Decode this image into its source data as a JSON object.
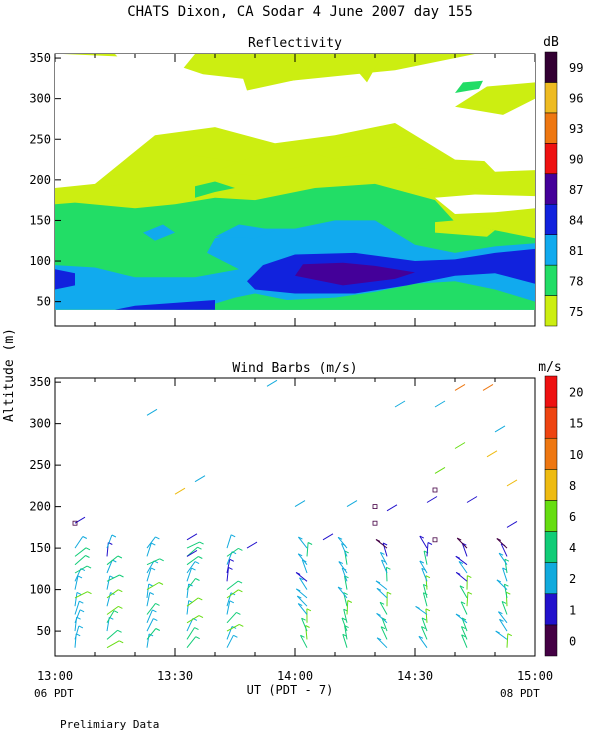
{
  "page": {
    "title": "CHATS Dixon, CA  Sodar   4 June 2007  day 155",
    "ylabel": "Altitude (m)",
    "xlabel": "UT  (PDT - 7)",
    "x_left_note": "06 PDT",
    "x_right_note": "08 PDT",
    "footer": "Prelimiary Data"
  },
  "chart_data": [
    {
      "type": "heatmap",
      "title": "Reflectivity",
      "colorbar_unit": "dB",
      "x_ticks": [
        "13:00",
        "13:30",
        "14:00",
        "14:30",
        "15:00"
      ],
      "x_range_minutes": [
        0,
        120
      ],
      "ylim": [
        20,
        355
      ],
      "y_ticks": [
        50,
        100,
        150,
        200,
        250,
        300,
        350
      ],
      "levels": [
        75,
        78,
        81,
        84,
        87,
        90,
        93,
        96,
        99
      ],
      "colors": [
        "#ccee11",
        "#22dd66",
        "#11aaee",
        "#1122dd",
        "#440099",
        "#ee1111",
        "#ee7711",
        "#eebb22",
        "#330033"
      ],
      "filled_region_y_range": [
        40,
        190
      ],
      "regions": [
        {
          "level": 75,
          "t_minutes": [
            0,
            120
          ],
          "alt_range": [
            40,
            350
          ]
        },
        {
          "level": 78,
          "t_minutes": [
            0,
            120
          ],
          "alt_range": [
            40,
            170
          ]
        },
        {
          "level": 81,
          "t_minutes": [
            0,
            120
          ],
          "alt_range": [
            40,
            150
          ]
        },
        {
          "level": 84,
          "t_minutes": [
            30,
            120
          ],
          "alt_range": [
            40,
            110
          ]
        },
        {
          "level": 87,
          "t_minutes": [
            60,
            90
          ],
          "alt_range": [
            70,
            95
          ]
        }
      ]
    },
    {
      "type": "scatter",
      "title": "Wind Barbs (m/s)",
      "colorbar_unit": "m/s",
      "x_ticks": [
        "13:00",
        "13:30",
        "14:00",
        "14:30",
        "15:00"
      ],
      "x_range_minutes": [
        0,
        120
      ],
      "ylim": [
        20,
        355
      ],
      "y_ticks": [
        50,
        100,
        150,
        200,
        250,
        300,
        350
      ],
      "levels": [
        0,
        1,
        2,
        4,
        6,
        8,
        10,
        15,
        20
      ],
      "colors": [
        "#440044",
        "#2211cc",
        "#11aadd",
        "#11cc77",
        "#66dd11",
        "#eebb11",
        "#ee7711",
        "#ee4411",
        "#ee1111"
      ],
      "profile_times_minutes": [
        5,
        13,
        23,
        33,
        43,
        63,
        73,
        83,
        93,
        103,
        113
      ],
      "profile_heights_m": [
        30,
        40,
        50,
        60,
        70,
        80,
        90,
        100,
        110,
        120,
        130,
        140,
        150
      ]
    }
  ]
}
